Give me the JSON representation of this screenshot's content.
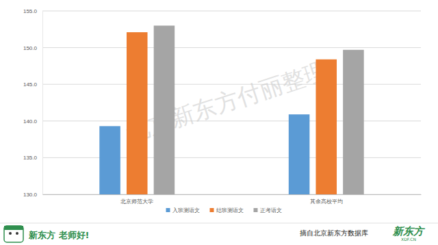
{
  "chart_data": {
    "type": "bar",
    "categories": [
      "北京师范大学",
      "其余高校平均"
    ],
    "series": [
      {
        "name": "入班测语文",
        "color": "#5b9bd5",
        "values": [
          139.3,
          140.9
        ]
      },
      {
        "name": "结班测语文",
        "color": "#ed7d31",
        "values": [
          152.1,
          148.4
        ]
      },
      {
        "name": "正考语文",
        "color": "#a5a5a5",
        "values": [
          153.0,
          149.7
        ]
      }
    ],
    "ylim": [
      130,
      155
    ],
    "yticks": [
      {
        "value": 130,
        "label": "130.0"
      },
      {
        "value": 135,
        "label": "135.0"
      },
      {
        "value": 140,
        "label": "140.0"
      },
      {
        "value": 145,
        "label": "145.0"
      },
      {
        "value": 150,
        "label": "150.0"
      },
      {
        "value": 155,
        "label": "155.0"
      }
    ],
    "grid": true,
    "legend": "bottom",
    "annotations": [
      "北京新东方付丽整理",
      "新东方 老师好!",
      "摘自北京新东方数据库",
      "新东方",
      "XDF.CN"
    ]
  }
}
